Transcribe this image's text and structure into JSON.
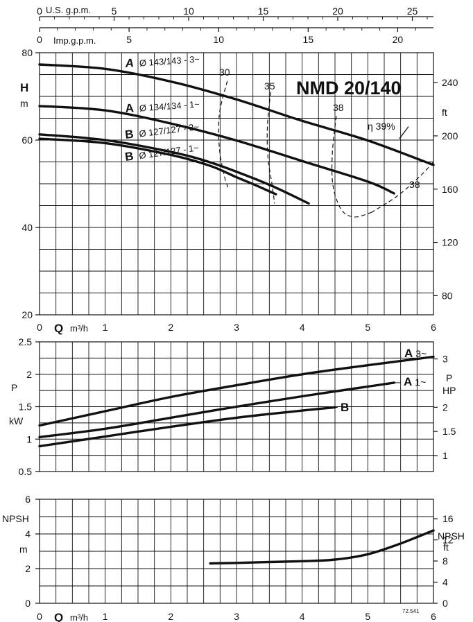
{
  "chart_data": [
    {
      "type": "line",
      "title": "NMD 20/140",
      "xlabel_symbol": "Q",
      "xlabel_unit": "m³/h",
      "xlim": [
        0,
        6
      ],
      "x_ticks": [
        "0",
        "1",
        "2",
        "3",
        "4",
        "5",
        "6"
      ],
      "ylabel_symbol": "H",
      "ylabel_unit": "m",
      "ylim": [
        20,
        80
      ],
      "y_ticks": [
        "20",
        "40",
        "60",
        "80"
      ],
      "y2label_unit": "ft",
      "y2_ticks": [
        "80",
        "120",
        "160",
        "200",
        "240"
      ],
      "top_axis_usgpm": {
        "label": "U.S. g.p.m.",
        "ticks": [
          "0",
          "5",
          "10",
          "15",
          "20",
          "25"
        ]
      },
      "top_axis_impgpm": {
        "label": "Imp.g.p.m.",
        "ticks": [
          "0",
          "5",
          "10",
          "15",
          "20"
        ]
      },
      "grid": true,
      "series": [
        {
          "name": "A Ø 143/143 - 3~",
          "x": [
            0,
            1,
            2,
            3,
            4,
            5,
            6
          ],
          "y": [
            77.3,
            76.3,
            73.4,
            69.3,
            64.4,
            59.9,
            54.3
          ]
        },
        {
          "name": "A Ø 134/134 - 1~",
          "x": [
            0,
            1,
            2,
            3,
            4,
            5,
            5.4
          ],
          "y": [
            67.8,
            66.8,
            63.8,
            59.9,
            55.2,
            50.5,
            47.8
          ]
        },
        {
          "name": "B Ø 127/127 - 3~",
          "x": [
            0,
            1,
            2,
            2.6,
            3.2,
            3.6,
            4.1
          ],
          "y": [
            61.3,
            60.0,
            57.3,
            54.9,
            51.6,
            49.1,
            45.5
          ]
        },
        {
          "name": "B Ø 127/127 - 1~",
          "x": [
            0,
            1,
            2,
            2.6,
            3.0,
            3.3,
            3.6
          ],
          "y": [
            60.3,
            59.3,
            56.6,
            54.1,
            51.5,
            49.6,
            47.6
          ]
        }
      ],
      "efficiency_labels": [
        "30",
        "35",
        "38",
        "38",
        "η 39%"
      ]
    },
    {
      "type": "line",
      "ylabel_symbol": "P",
      "ylabel_unit": "kW",
      "ylim": [
        0.5,
        2.5
      ],
      "y_ticks": [
        "0.5",
        "1",
        "1.5",
        "2",
        "2.5"
      ],
      "y2label_symbol": "P",
      "y2label_unit": "HP",
      "y2_ticks": [
        "1",
        "1.5",
        "2",
        "3"
      ],
      "xlim": [
        0,
        6
      ],
      "grid": true,
      "series": [
        {
          "name": "A 3~",
          "x": [
            0,
            1,
            2,
            3,
            4,
            5,
            6
          ],
          "y": [
            1.21,
            1.43,
            1.65,
            1.83,
            2.0,
            2.14,
            2.27
          ]
        },
        {
          "name": "A 1~",
          "x": [
            0,
            1,
            2,
            3,
            4,
            5,
            5.4
          ],
          "y": [
            1.03,
            1.16,
            1.33,
            1.5,
            1.66,
            1.81,
            1.87
          ]
        },
        {
          "name": "B",
          "x": [
            0,
            1,
            2,
            3,
            4,
            4.5
          ],
          "y": [
            0.89,
            1.04,
            1.19,
            1.33,
            1.44,
            1.49
          ]
        }
      ]
    },
    {
      "type": "line",
      "xlabel_symbol": "Q",
      "xlabel_unit": "m³/h",
      "xlim": [
        0,
        6
      ],
      "x_ticks": [
        "0",
        "1",
        "2",
        "3",
        "4",
        "5",
        "6"
      ],
      "ylabel_symbol": "NPSH",
      "ylabel_unit": "m",
      "ylim": [
        0,
        6
      ],
      "y_ticks": [
        "0",
        "2",
        "4",
        "6"
      ],
      "y2label_symbol": "NPSH",
      "y2label_unit": "ft",
      "y2_ticks": [
        "0",
        "4",
        "8",
        "12",
        "16"
      ],
      "grid": true,
      "series": [
        {
          "name": "NPSH",
          "x": [
            2.6,
            3,
            3.5,
            4,
            4.5,
            5,
            5.5,
            6
          ],
          "y": [
            2.3,
            2.33,
            2.38,
            2.43,
            2.52,
            2.83,
            3.45,
            4.2
          ]
        }
      ],
      "code": "72.541"
    }
  ]
}
